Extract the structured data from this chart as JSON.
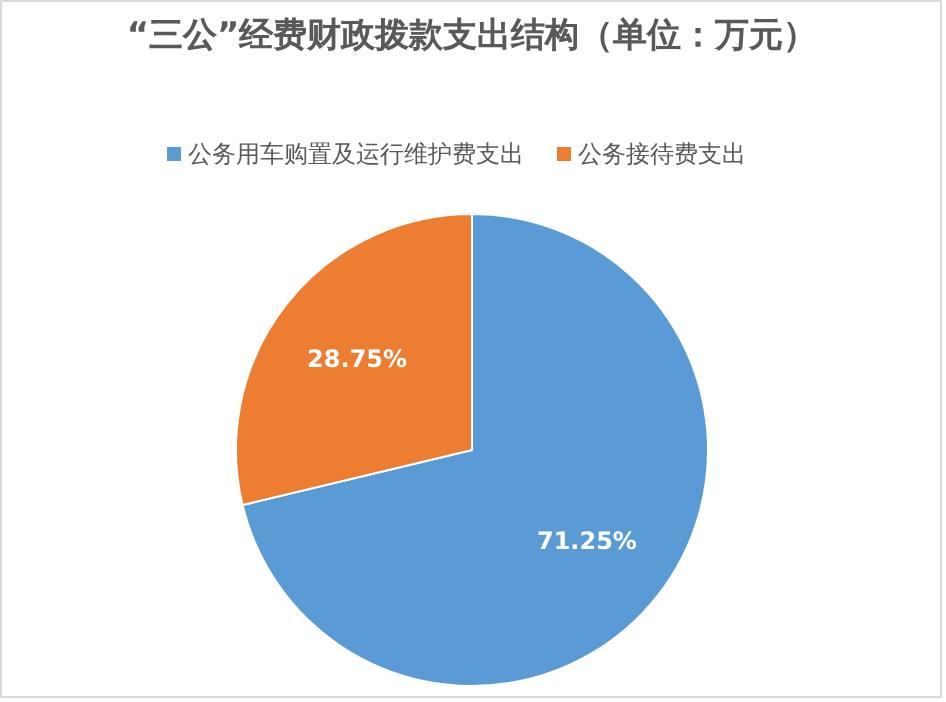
{
  "chart_data": {
    "type": "pie",
    "title": "“三公”经费财政拨款支出结构（单位：万元）",
    "categories": [
      "公务用车购置及运行维护费支出",
      "公务接待费支出"
    ],
    "values": [
      71.25,
      28.75
    ],
    "colors": [
      "#5b9bd5",
      "#ed7d31"
    ],
    "value_labels": [
      "71.25%",
      "28.75%"
    ],
    "legend": "top"
  }
}
